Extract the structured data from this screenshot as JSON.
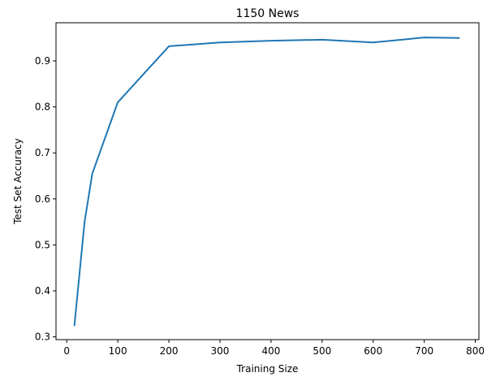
{
  "chart_data": {
    "type": "line",
    "title": "1150 News",
    "xlabel": "Training Size",
    "ylabel": "Test Set Accuracy",
    "xlim": [
      -21,
      807
    ],
    "ylim": [
      0.294,
      0.983
    ],
    "xticks": [
      0,
      100,
      200,
      300,
      400,
      500,
      600,
      700,
      800
    ],
    "yticks": [
      0.3,
      0.4,
      0.5,
      0.6,
      0.7,
      0.8,
      0.9
    ],
    "xtick_labels": [
      "0",
      "100",
      "200",
      "300",
      "400",
      "500",
      "600",
      "700",
      "800"
    ],
    "ytick_labels": [
      "0.3",
      "0.4",
      "0.5",
      "0.6",
      "0.7",
      "0.8",
      "0.9"
    ],
    "grid": false,
    "color": "#1f77b4",
    "series": [
      {
        "x": [
          15,
          35,
          50,
          100,
          200,
          300,
          400,
          500,
          600,
          700,
          768
        ],
        "values": [
          0.325,
          0.55,
          0.655,
          0.81,
          0.932,
          0.94,
          0.944,
          0.946,
          0.94,
          0.951,
          0.95
        ]
      }
    ]
  }
}
